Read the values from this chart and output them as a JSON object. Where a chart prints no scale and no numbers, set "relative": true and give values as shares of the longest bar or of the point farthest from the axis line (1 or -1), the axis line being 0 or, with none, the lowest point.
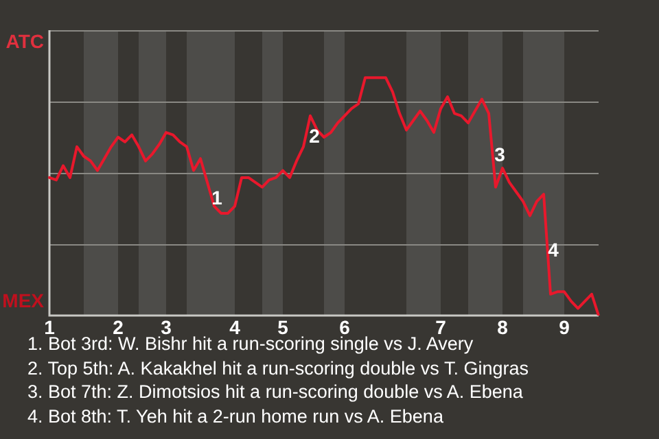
{
  "chart_data": {
    "type": "line",
    "relative": true,
    "categories": [
      "1",
      null,
      null,
      null,
      null,
      null,
      null,
      null,
      null,
      null,
      "2",
      null,
      null,
      null,
      null,
      null,
      null,
      "3",
      null,
      null,
      null,
      null,
      null,
      null,
      null,
      null,
      null,
      "4",
      null,
      null,
      null,
      null,
      null,
      null,
      "5",
      null,
      null,
      null,
      null,
      null,
      null,
      null,
      null,
      "6",
      null,
      null,
      null,
      null,
      null,
      null,
      null,
      null,
      null,
      null,
      null,
      null,
      null,
      "7",
      null,
      null,
      null,
      null,
      null,
      null,
      null,
      null,
      "8",
      null,
      null,
      null,
      null,
      null,
      null,
      null,
      null,
      "9",
      null,
      null,
      null,
      null,
      null
    ],
    "series": [
      {
        "color": "#e8182c",
        "values": [
          0.58,
          0.57,
          0.63,
          0.58,
          0.71,
          0.67,
          0.65,
          0.61,
          0.66,
          0.71,
          0.75,
          0.73,
          0.76,
          0.71,
          0.65,
          0.68,
          0.72,
          0.77,
          0.76,
          0.73,
          0.71,
          0.61,
          0.66,
          0.56,
          0.46,
          0.43,
          0.43,
          0.46,
          0.58,
          0.58,
          0.56,
          0.54,
          0.57,
          0.58,
          0.61,
          0.58,
          0.65,
          0.71,
          0.84,
          0.78,
          0.75,
          0.77,
          0.81,
          0.84,
          0.87,
          0.89,
          1,
          1,
          1,
          1,
          0.94,
          0.85,
          0.78,
          0.82,
          0.86,
          0.82,
          0.77,
          0.87,
          0.92,
          0.85,
          0.84,
          0.81,
          0.86,
          0.91,
          0.85,
          0.54,
          0.62,
          0.56,
          0.52,
          0.48,
          0.42,
          0.48,
          0.51,
          0.09,
          0.1,
          0.1,
          0.06,
          0.03,
          0.06,
          0.09,
          0
        ]
      }
    ],
    "grid": "y",
    "marker": "none",
    "annotations": [
      "ATC",
      "MEX",
      "1",
      "2",
      "3",
      "4",
      "1. Bot 3rd: W. Bishr hit a run-scoring single vs J. Avery",
      "2. Top 5th: A. Kakakhel hit a run-scoring double vs T. Gingras",
      "3. Bot 7th: Z. Dimotsios hit a run-scoring double vs A. Ebena",
      "4. Bot 8th: T. Yeh hit a 2-run home run vs A. Ebena"
    ]
  }
}
